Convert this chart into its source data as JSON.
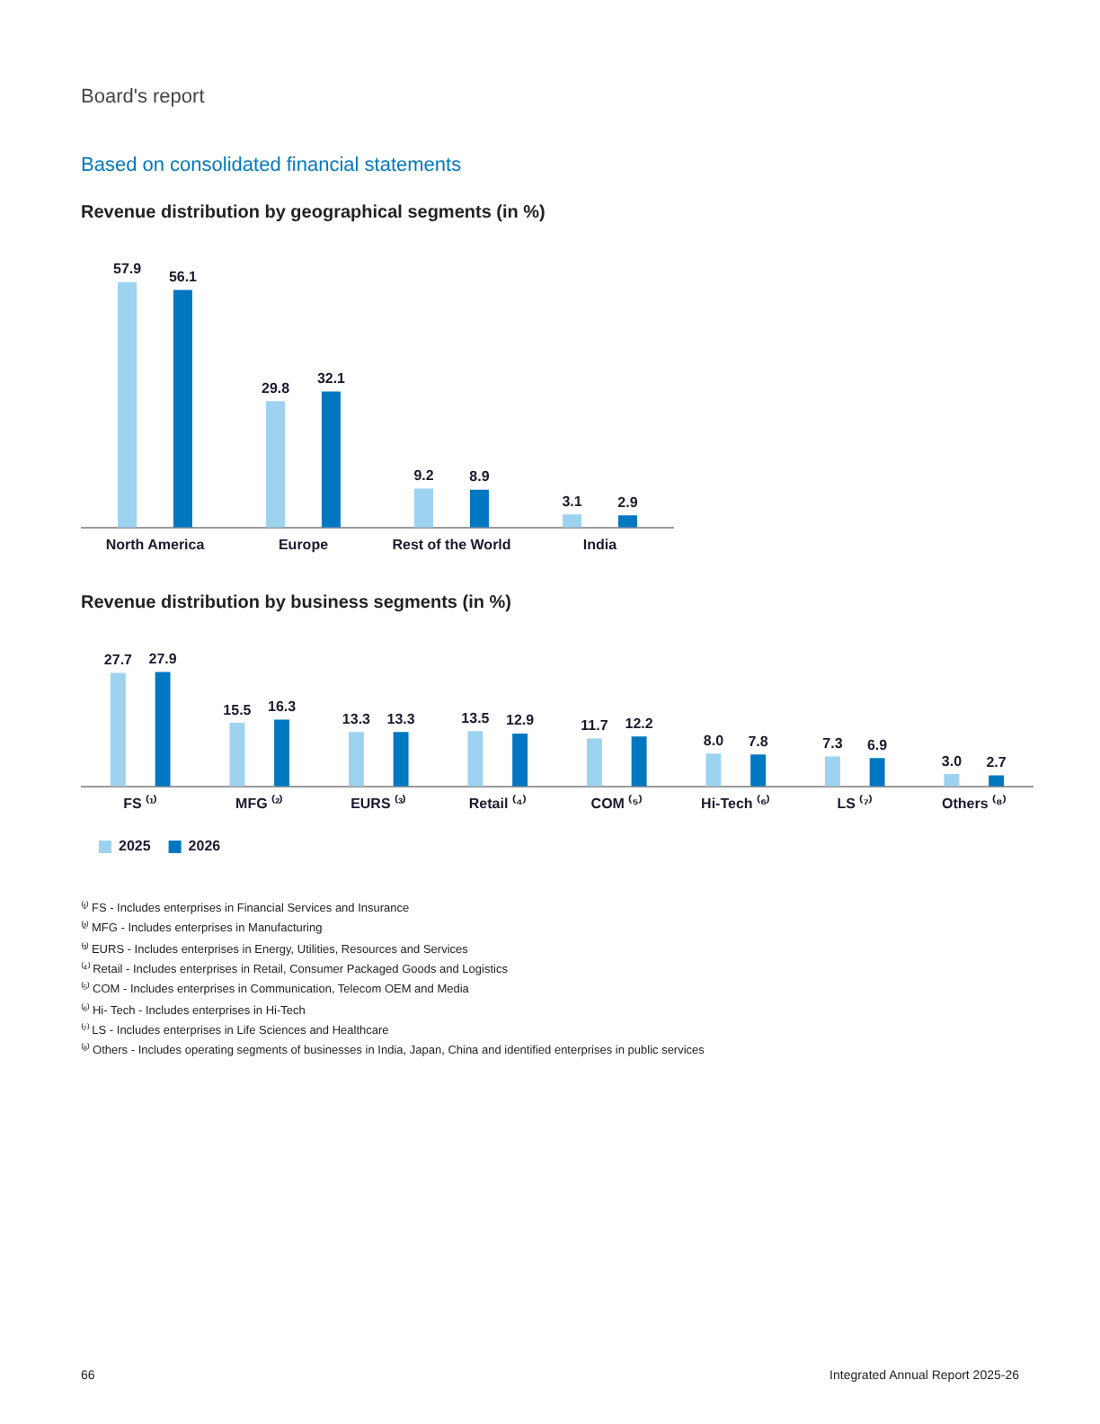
{
  "chart_data": [
    {
      "type": "bar",
      "title": "Revenue distribution by geographical segments (in %)",
      "annotations": [
        "Board's report",
        "Based on consolidated financial statements"
      ],
      "categories": [
        "North America",
        "Europe",
        "Rest of the World",
        "India"
      ],
      "series": [
        {
          "color": "#9dd2f0",
          "values": [
            57.9,
            29.8,
            9.2,
            3.1
          ],
          "value_labels": [
            "57.9",
            "29.8",
            "9.2",
            "3.1"
          ]
        },
        {
          "color": "#0077c0",
          "values": [
            56.1,
            32.1,
            8.9,
            2.9
          ],
          "value_labels": [
            "56.1",
            "32.1",
            "8.9",
            "2.9"
          ]
        }
      ],
      "grid": false,
      "tick_labels": "x",
      "legend": false
    },
    {
      "type": "bar",
      "title": "Revenue distribution by business segments (in %)",
      "annotations": [
        "⁽¹⁾ FS - Includes enterprises in Financial Services and Insurance",
        "⁽²⁾ MFG - Includes enterprises in Manufacturing",
        "⁽³⁾ EURS - Includes enterprises in Energy, Utilities, Resources and Services",
        "⁽⁴⁾ Retail - Includes enterprises in Retail, Consumer Packaged Goods and Logistics",
        "⁽⁵⁾ COM - Includes enterprises in Communication, Telecom OEM and Media",
        "⁽⁶⁾ Hi- Tech - Includes enterprises in Hi-Tech",
        "⁽⁷⁾ LS - Includes enterprises in Life Sciences and Healthcare",
        "⁽⁸⁾ Others - Includes operating segments of businesses in India, Japan, China and identified enterprises in public services",
        "66",
        "Integrated Annual Report 2025-26"
      ],
      "categories": [
        "FS ⁽¹⁾",
        "MFG ⁽²⁾",
        "EURS ⁽³⁾",
        "Retail ⁽⁴⁾",
        "COM ⁽⁵⁾",
        "Hi-Tech ⁽⁶⁾",
        "LS ⁽⁷⁾",
        "Others ⁽⁸⁾"
      ],
      "series": [
        {
          "name": "2025",
          "color": "#9dd2f0",
          "values": [
            27.7,
            15.5,
            13.3,
            13.5,
            11.7,
            8.0,
            7.3,
            3.0
          ],
          "value_labels": [
            "27.7",
            "15.5",
            "13.3",
            "13.5",
            "11.7",
            "8.0",
            "7.3",
            "3.0"
          ]
        },
        {
          "name": "2026",
          "color": "#0077c0",
          "values": [
            27.9,
            16.3,
            13.3,
            12.9,
            12.2,
            7.8,
            6.9,
            2.7
          ],
          "value_labels": [
            "27.9",
            "16.3",
            "13.3",
            "12.9",
            "12.2",
            "7.8",
            "6.9",
            "2.7"
          ]
        }
      ],
      "grid": false,
      "tick_labels": "x",
      "legend": "bottom left"
    }
  ]
}
